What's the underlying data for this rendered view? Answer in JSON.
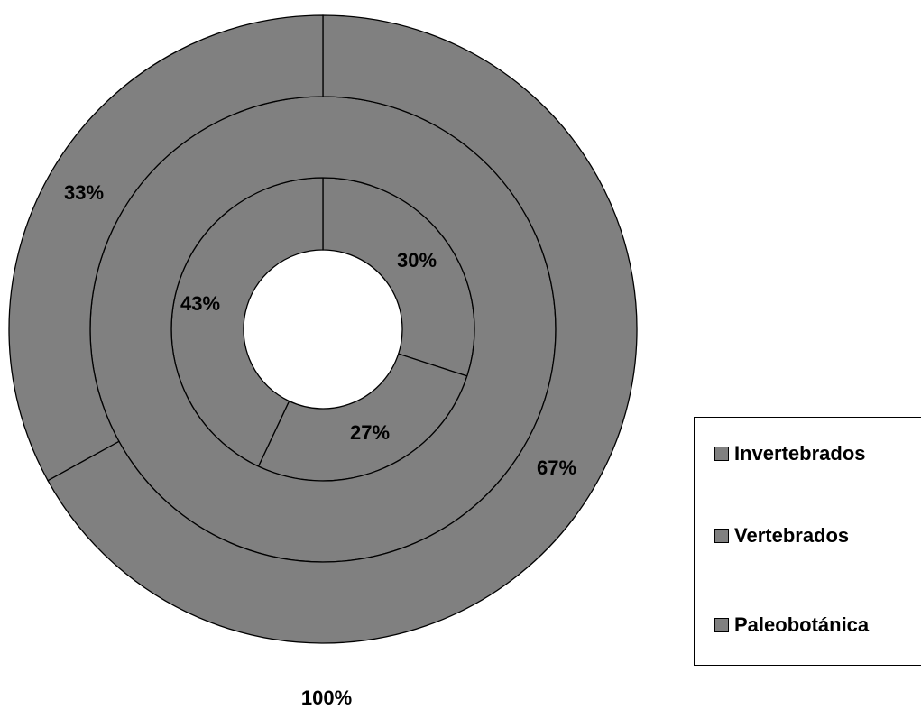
{
  "chart_data": {
    "type": "doughnut",
    "series": [
      {
        "values": [
          30,
          27,
          43
        ],
        "labels": [
          "30%",
          "27%",
          "43%"
        ]
      },
      {
        "values": [
          100
        ],
        "labels": [
          "100%"
        ]
      },
      {
        "values": [
          67,
          33
        ],
        "labels": [
          "67%",
          "33%"
        ]
      }
    ],
    "legend": {
      "position": "right",
      "entries": [
        "Invertebrados",
        "Vertebrados",
        "Paleobotánica"
      ]
    },
    "fill_color": "#808080",
    "stroke_color": "#000000"
  }
}
